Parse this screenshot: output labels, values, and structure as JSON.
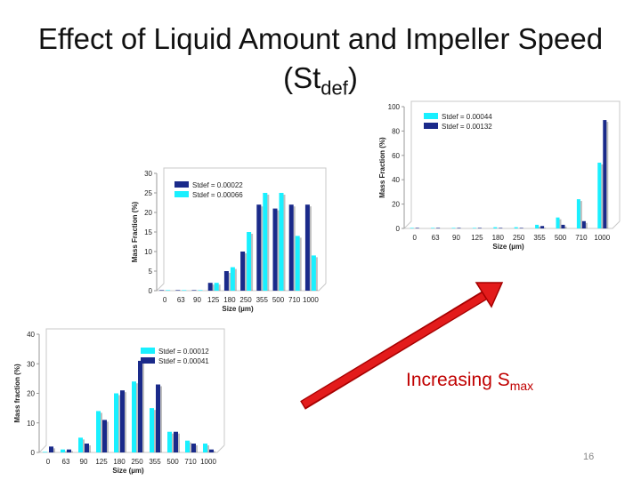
{
  "slide": {
    "title_main": "Effect of Liquid Amount and Impeller Speed (St",
    "title_sub": "def",
    "title_end": ")",
    "annotation_main": "Increasing S",
    "annotation_sub": "max",
    "page_number": "16"
  },
  "colors": {
    "cyan": "#19f0ff",
    "navy": "#1a2a8a",
    "arrow": "#e31b1b",
    "arrow_edge": "#a50000"
  },
  "chart_data": [
    {
      "id": "top-right",
      "type": "bar",
      "xlabel": "Size (µm)",
      "ylabel": "Mass Fraction (%)",
      "ylim": [
        0,
        100
      ],
      "yticks": [
        "0",
        "20",
        "40",
        "60",
        "80",
        "100"
      ],
      "categories": [
        "0",
        "63",
        "90",
        "125",
        "180",
        "250",
        "355",
        "500",
        "710",
        "1000"
      ],
      "series": [
        {
          "name": "Stdef = 0.00044",
          "color": "#19f0ff",
          "values": [
            0,
            0,
            0,
            0,
            1,
            1,
            3,
            9,
            24,
            54
          ]
        },
        {
          "name": "Stdef = 0.00132",
          "color": "#1a2a8a",
          "values": [
            0,
            0,
            0,
            0,
            0,
            0,
            2,
            3,
            6,
            89
          ]
        }
      ],
      "legend": "top-left",
      "grid": false
    },
    {
      "id": "middle",
      "type": "bar",
      "xlabel": "Size (µm)",
      "ylabel": "Mass Fraction (%)",
      "ylim": [
        0,
        30
      ],
      "yticks": [
        "0",
        "5",
        "10",
        "15",
        "20",
        "25",
        "30"
      ],
      "categories": [
        "0",
        "63",
        "90",
        "125",
        "180",
        "250",
        "355",
        "500",
        "710",
        "1000"
      ],
      "series": [
        {
          "name": "Stdef = 0.00022",
          "color": "#1a2a8a",
          "values": [
            0,
            0,
            0,
            2,
            5,
            10,
            22,
            21,
            22,
            22
          ]
        },
        {
          "name": "Stdef = 0.00066",
          "color": "#19f0ff",
          "values": [
            0,
            0,
            0,
            2,
            6,
            15,
            25,
            25,
            14,
            9
          ]
        }
      ],
      "legend": "top-left",
      "grid": false
    },
    {
      "id": "bottom-left",
      "type": "bar",
      "xlabel": "Size (µm)",
      "ylabel": "Mass fraction (%)",
      "ylim": [
        0,
        40
      ],
      "yticks": [
        "0",
        "10",
        "20",
        "30",
        "40"
      ],
      "categories": [
        "0",
        "63",
        "90",
        "125",
        "180",
        "250",
        "355",
        "500",
        "710",
        "1000"
      ],
      "series": [
        {
          "name": "Stdef = 0.00012",
          "color": "#19f0ff",
          "values": [
            0,
            1,
            5,
            14,
            20,
            24,
            15,
            7,
            4,
            3
          ]
        },
        {
          "name": "Stdef = 0.00041",
          "color": "#1a2a8a",
          "values": [
            2,
            1,
            3,
            11,
            21,
            31,
            23,
            7,
            3,
            1
          ]
        }
      ],
      "legend": "top-left",
      "grid": false
    }
  ]
}
